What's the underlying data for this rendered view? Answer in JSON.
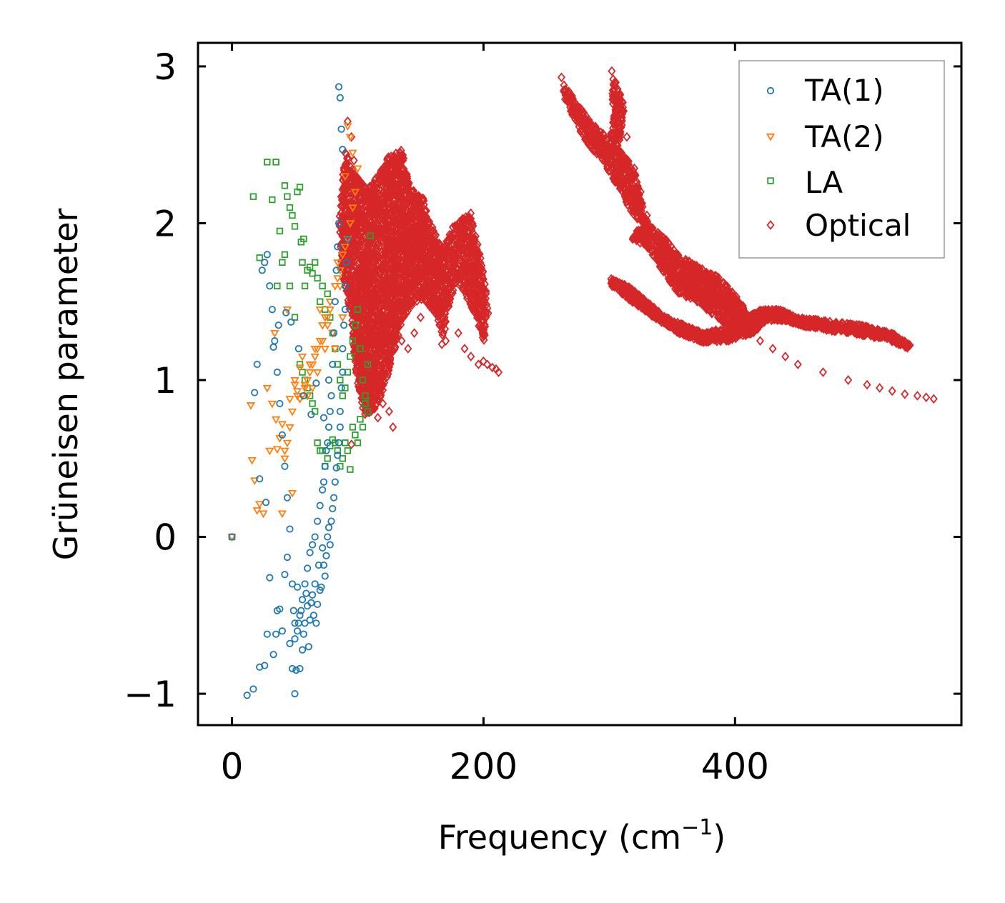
{
  "chart_data": {
    "type": "scatter",
    "title": "",
    "xlabel": "Frequency (cm",
    "xlabel_sup": "−1",
    "xlabel_end": ")",
    "ylabel": "Grüneisen parameter",
    "xlim": [
      -27,
      580
    ],
    "ylim": [
      -1.2,
      3.15
    ],
    "xticks": [
      0,
      200,
      400
    ],
    "xtick_labels": [
      "0",
      "200",
      "400"
    ],
    "yticks": [
      -1,
      0,
      1,
      2,
      3
    ],
    "ytick_labels": [
      "−1",
      "0",
      "1",
      "2",
      "3"
    ],
    "grid": false,
    "legend_position": "top-right",
    "series": [
      {
        "name": "TA(1)",
        "marker": "circle",
        "color": "#1f77b4",
        "x": [
          0,
          12,
          17,
          22,
          26,
          28,
          30,
          33,
          35,
          36,
          38,
          40,
          42,
          44,
          46,
          48,
          49,
          50,
          50,
          51,
          52,
          53,
          54,
          55,
          56,
          57,
          58,
          59,
          60,
          61,
          62,
          63,
          64,
          65,
          66,
          67,
          68,
          69,
          70,
          71,
          72,
          73,
          74,
          75,
          76,
          77,
          78,
          79,
          80,
          81,
          82,
          83,
          84,
          85,
          86,
          86,
          87,
          88,
          88,
          89,
          90,
          90,
          91,
          92,
          85,
          84,
          83,
          82,
          81,
          80,
          79,
          78,
          77,
          76,
          75,
          74,
          73,
          72,
          70,
          68,
          66,
          64,
          62,
          60,
          58,
          56,
          54,
          52,
          50,
          48,
          46,
          44,
          42,
          40,
          38,
          36,
          34,
          32,
          30,
          28,
          26,
          24,
          20,
          18,
          22,
          27,
          33,
          37,
          43,
          47,
          53,
          57,
          63,
          67,
          73,
          77,
          85,
          86,
          87,
          88
        ],
        "y": [
          0,
          -1.01,
          -0.97,
          -0.83,
          -0.82,
          -0.62,
          -0.26,
          -0.75,
          -0.62,
          -0.47,
          -0.46,
          -0.6,
          -0.24,
          -0.13,
          -0.68,
          -0.84,
          -0.47,
          -0.55,
          -1.0,
          -0.85,
          -0.32,
          -0.55,
          -0.84,
          -0.47,
          -0.72,
          -0.62,
          -0.55,
          -0.36,
          -0.44,
          -0.7,
          -0.53,
          -0.42,
          -0.37,
          -0.5,
          -0.3,
          -0.55,
          -0.43,
          -0.18,
          -0.34,
          -0.32,
          -0.07,
          -0.18,
          -0.25,
          -0.12,
          0.0,
          0.06,
          -0.05,
          0.1,
          0.18,
          0.25,
          0.35,
          0.44,
          0.52,
          0.6,
          0.7,
          0.8,
          0.95,
          1.05,
          1.2,
          1.35,
          1.45,
          1.6,
          1.75,
          1.9,
          2.0,
          1.85,
          1.7,
          1.5,
          1.3,
          1.1,
          0.9,
          0.8,
          0.7,
          0.6,
          0.55,
          0.45,
          0.35,
          0.3,
          0.2,
          0.1,
          0.0,
          -0.05,
          -0.1,
          -0.2,
          -0.3,
          -0.4,
          -0.5,
          -0.6,
          -0.65,
          -0.3,
          0.05,
          0.25,
          0.45,
          0.65,
          0.85,
          1.05,
          1.25,
          1.45,
          1.6,
          1.8,
          1.75,
          1.7,
          1.1,
          0.92,
          0.37,
          0.22,
          1.21,
          1.35,
          1.43,
          1.37,
          1.2,
          0.9,
          0.78,
          0.98,
          0.76,
          1.0,
          2.87,
          2.8,
          2.6,
          2.47
        ]
      },
      {
        "name": "TA(2)",
        "marker": "triangle-down",
        "color": "#ff7f0e",
        "x": [
          0,
          15,
          16,
          18,
          20,
          22,
          25,
          28,
          30,
          32,
          34,
          35,
          36,
          38,
          40,
          42,
          44,
          46,
          48,
          50,
          52,
          54,
          56,
          58,
          60,
          62,
          64,
          66,
          68,
          70,
          72,
          74,
          76,
          78,
          80,
          82,
          84,
          86,
          88,
          90,
          92,
          94,
          96,
          98,
          100,
          96,
          94,
          92,
          90,
          88,
          86,
          84,
          82,
          80,
          78,
          76,
          74,
          72,
          70,
          68,
          66,
          64,
          62,
          60,
          58,
          56,
          54,
          52,
          50,
          48,
          46,
          44,
          42,
          40
        ],
        "y": [
          0,
          0.84,
          0.49,
          0.36,
          0.17,
          0.21,
          0.15,
          0.95,
          0.55,
          0.85,
          1.3,
          0.75,
          0.56,
          0.63,
          0.72,
          0.5,
          1.45,
          0.88,
          0.28,
          1.0,
          0.93,
          1.08,
          1.15,
          0.97,
          0.9,
          1.1,
          0.95,
          1.2,
          1.05,
          1.25,
          1.35,
          1.2,
          1.4,
          1.45,
          1.3,
          1.6,
          1.65,
          1.7,
          1.8,
          1.85,
          1.9,
          2.0,
          2.1,
          2.2,
          2.35,
          2.45,
          2.55,
          2.62,
          2.3,
          1.4,
          1.6,
          1.75,
          1.2,
          1.3,
          1.5,
          1.35,
          1.4,
          1.25,
          1.45,
          1.2,
          1.15,
          1.1,
          1.05,
          1.0,
          0.95,
          0.9,
          0.88,
          0.9,
          0.97,
          0.8,
          0.7,
          0.6,
          0.55,
          0.15
        ]
      },
      {
        "name": "LA",
        "marker": "square",
        "color": "#2ca02c",
        "x": [
          0,
          17,
          22,
          28,
          32,
          35,
          38,
          40,
          42,
          44,
          46,
          48,
          50,
          52,
          54,
          55,
          56,
          57,
          58,
          60,
          62,
          64,
          66,
          68,
          70,
          72,
          74,
          76,
          78,
          80,
          82,
          84,
          86,
          88,
          90,
          92,
          94,
          96,
          98,
          100,
          102,
          104,
          106,
          108,
          110,
          108,
          106,
          104,
          102,
          100,
          98,
          96,
          94,
          92,
          90,
          88,
          86,
          84,
          82,
          80,
          78,
          76,
          74,
          72,
          70,
          68,
          66,
          64,
          62,
          60,
          58,
          56,
          54,
          50,
          46,
          42,
          36
        ],
        "y": [
          0,
          2.17,
          1.78,
          2.39,
          2.15,
          2.39,
          1.95,
          1.75,
          2.24,
          2.17,
          2.1,
          2.05,
          1.98,
          2.2,
          2.23,
          1.88,
          1.75,
          1.9,
          1.6,
          1.7,
          1.72,
          1.68,
          1.75,
          1.65,
          1.5,
          1.6,
          1.45,
          1.55,
          1.4,
          1.3,
          1.2,
          1.1,
          1.0,
          0.9,
          0.95,
          1.05,
          1.15,
          1.25,
          1.35,
          1.45,
          1.2,
          1.0,
          0.85,
          1.1,
          1.92,
          0.8,
          0.9,
          0.7,
          0.75,
          0.6,
          0.65,
          0.7,
          0.43,
          0.55,
          0.6,
          0.5,
          0.45,
          0.55,
          0.6,
          0.62,
          0.58,
          0.5,
          0.45,
          0.55,
          0.55,
          0.6,
          0.8,
          0.85,
          0.9,
          0.95,
          1.0,
          1.05,
          1.1,
          1.4,
          1.6,
          1.8,
          1.6
        ]
      },
      {
        "name": "Optical",
        "marker": "diamond",
        "color": "#d62728",
        "clouds": [
          {
            "polygon": [
              [
                83,
                2.1
              ],
              [
                88,
                2.55
              ],
              [
                95,
                2.4
              ],
              [
                105,
                2.3
              ],
              [
                115,
                2.4
              ],
              [
                122,
                2.5
              ],
              [
                133,
                2.55
              ],
              [
                140,
                2.3
              ],
              [
                150,
                2.25
              ],
              [
                155,
                2.1
              ],
              [
                163,
                1.95
              ],
              [
                168,
                1.95
              ],
              [
                172,
                2.05
              ],
              [
                180,
                2.1
              ],
              [
                188,
                2.15
              ],
              [
                196,
                1.85
              ],
              [
                200,
                1.65
              ],
              [
                202,
                1.5
              ],
              [
                198,
                1.3
              ],
              [
                193,
                1.45
              ],
              [
                185,
                1.6
              ],
              [
                178,
                1.7
              ],
              [
                172,
                1.6
              ],
              [
                165,
                1.3
              ],
              [
                160,
                1.5
              ],
              [
                150,
                1.6
              ],
              [
                140,
                1.55
              ],
              [
                133,
                1.45
              ],
              [
                125,
                1.2
              ],
              [
                118,
                1.0
              ],
              [
                112,
                0.9
              ],
              [
                103,
                0.85
              ],
              [
                97,
                1.1
              ],
              [
                92,
                1.5
              ],
              [
                85,
                1.8
              ]
            ],
            "count": 3500,
            "seed": 11,
            "y_shift": -0.08,
            "x_shift": 2
          },
          {
            "polygon": [
              [
                300,
                1.65
              ],
              [
                315,
                1.6
              ],
              [
                330,
                1.5
              ],
              [
                345,
                1.4
              ],
              [
                360,
                1.35
              ],
              [
                375,
                1.3
              ],
              [
                400,
                1.35
              ],
              [
                420,
                1.45
              ],
              [
                435,
                1.45
              ],
              [
                450,
                1.4
              ],
              [
                470,
                1.38
              ],
              [
                500,
                1.35
              ],
              [
                525,
                1.3
              ],
              [
                540,
                1.22
              ],
              [
                538,
                1.2
              ],
              [
                520,
                1.26
              ],
              [
                490,
                1.3
              ],
              [
                460,
                1.33
              ],
              [
                440,
                1.38
              ],
              [
                425,
                1.38
              ],
              [
                415,
                1.3
              ],
              [
                395,
                1.25
              ],
              [
                375,
                1.24
              ],
              [
                355,
                1.3
              ],
              [
                335,
                1.4
              ],
              [
                318,
                1.5
              ],
              [
                302,
                1.6
              ]
            ],
            "count": 1500,
            "seed": 23,
            "y_shift": 0,
            "x_shift": 0
          },
          {
            "polygon": [
              [
                330,
                2.0
              ],
              [
                345,
                1.9
              ],
              [
                355,
                1.8
              ],
              [
                372,
                1.72
              ],
              [
                388,
                1.65
              ],
              [
                405,
                1.5
              ],
              [
                415,
                1.35
              ],
              [
                400,
                1.3
              ],
              [
                385,
                1.4
              ],
              [
                370,
                1.5
              ],
              [
                355,
                1.55
              ],
              [
                342,
                1.7
              ],
              [
                330,
                1.85
              ],
              [
                318,
                1.9
              ],
              [
                312,
                1.78
              ],
              [
                320,
                1.95
              ]
            ],
            "count": 900,
            "seed": 37,
            "y_shift": 0,
            "x_shift": 0
          },
          {
            "polygon": [
              [
                262,
                2.9
              ],
              [
                272,
                2.8
              ],
              [
                285,
                2.65
              ],
              [
                298,
                2.55
              ],
              [
                310,
                2.45
              ],
              [
                320,
                2.35
              ],
              [
                327,
                2.1
              ],
              [
                333,
                1.95
              ],
              [
                325,
                2.0
              ],
              [
                315,
                2.1
              ],
              [
                305,
                2.25
              ],
              [
                295,
                2.4
              ],
              [
                283,
                2.5
              ],
              [
                272,
                2.65
              ],
              [
                264,
                2.8
              ]
            ],
            "count": 500,
            "seed": 41,
            "y_shift": 0,
            "x_shift": 0
          },
          {
            "polygon": [
              [
                302,
                2.95
              ],
              [
                308,
                2.85
              ],
              [
                312,
                2.75
              ],
              [
                310,
                2.55
              ],
              [
                305,
                2.45
              ],
              [
                300,
                2.5
              ],
              [
                303,
                2.7
              ]
            ],
            "count": 120,
            "seed": 53,
            "y_shift": 0,
            "x_shift": 0
          }
        ],
        "x": [
          92,
          95,
          97,
          100,
          105,
          110,
          115,
          120,
          123,
          126,
          130,
          135,
          140,
          145,
          150,
          160,
          165,
          170,
          180,
          185,
          190,
          196,
          200,
          203,
          207,
          210,
          212,
          120,
          125,
          128,
          262,
          264,
          268,
          275,
          282,
          290,
          296,
          302,
          305,
          308,
          310,
          314,
          320,
          325,
          330,
          335,
          340,
          345,
          350,
          355,
          360,
          365,
          370,
          380,
          390,
          400,
          410,
          420,
          430,
          440,
          450,
          470,
          490,
          505,
          515,
          525,
          535,
          545,
          552,
          558,
          118,
          116,
          95
        ],
        "y": [
          2.65,
          2.55,
          2.4,
          2.2,
          2.0,
          1.9,
          1.8,
          1.7,
          1.55,
          1.45,
          1.3,
          1.25,
          1.2,
          1.3,
          1.4,
          1.45,
          1.35,
          1.25,
          1.3,
          1.2,
          1.15,
          1.1,
          1.12,
          1.1,
          1.08,
          1.07,
          1.05,
          0.85,
          0.8,
          0.7,
          2.93,
          2.88,
          2.82,
          2.72,
          2.65,
          2.6,
          2.5,
          2.97,
          2.9,
          2.8,
          2.65,
          2.55,
          2.35,
          2.2,
          2.05,
          1.95,
          1.9,
          1.85,
          1.75,
          1.65,
          1.6,
          1.55,
          1.5,
          1.45,
          1.4,
          1.38,
          1.3,
          1.25,
          1.2,
          1.15,
          1.1,
          1.05,
          1.0,
          0.97,
          0.95,
          0.93,
          0.91,
          0.9,
          0.89,
          0.88,
          0.92,
          0.76,
          0.59
        ]
      }
    ]
  }
}
